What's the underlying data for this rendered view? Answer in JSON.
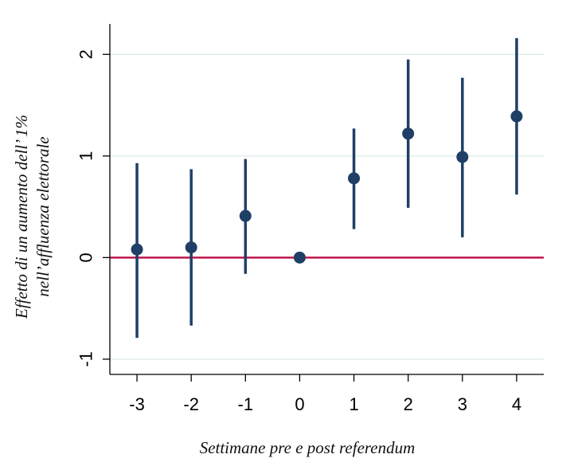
{
  "chart_data": {
    "type": "scatter",
    "subtype": "coefficient-plot-with-confidence-intervals",
    "title": "",
    "xlabel": "Settimane pre e post referendum",
    "ylabel_lines": [
      "Effetto di un aumento dell’ 1%",
      "nell’affluenza elettorale"
    ],
    "x": [
      -3,
      -2,
      -1,
      0,
      1,
      2,
      3,
      4
    ],
    "y": [
      0.08,
      0.1,
      0.41,
      0.0,
      0.78,
      1.22,
      0.99,
      1.39
    ],
    "ci_low": [
      -0.79,
      -0.67,
      -0.16,
      0.0,
      0.28,
      0.49,
      0.2,
      0.62
    ],
    "ci_high": [
      0.93,
      0.87,
      0.97,
      0.0,
      1.27,
      1.95,
      1.77,
      2.16
    ],
    "xticks": [
      "-3",
      "-2",
      "-1",
      "0",
      "1",
      "2",
      "3",
      "4"
    ],
    "yticks": [
      "-1",
      "0",
      "1",
      "2"
    ],
    "xlim": [
      -3.5,
      4.5
    ],
    "ylim": [
      -1.15,
      2.3
    ],
    "reference_line_y": 0,
    "grid": "horizontal",
    "legend": "none",
    "colors": {
      "marker": "#1f3f66",
      "reference_line": "#c0144c",
      "grid": "#e2ecec",
      "axis": "#000000"
    }
  }
}
